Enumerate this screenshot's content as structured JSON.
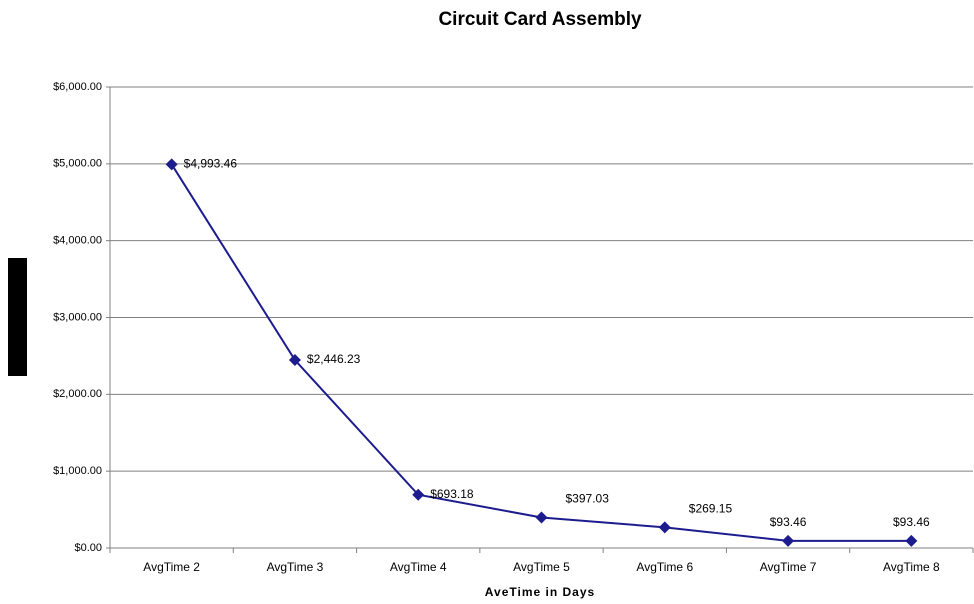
{
  "chart_data": {
    "type": "line",
    "title": "Circuit Card Assembly",
    "x_label": "AveTime in Days",
    "categories": [
      "AvgTime 2",
      "AvgTime 3",
      "AvgTime 4",
      "AvgTime 5",
      "AvgTime 6",
      "AvgTime 7",
      "AvgTime 8"
    ],
    "series": [
      {
        "name": "Cost",
        "color": "#1c1c8e",
        "values": [
          4993.46,
          2446.23,
          693.18,
          397.03,
          269.15,
          93.46,
          93.46
        ],
        "value_labels": [
          "$4,993.46",
          "$2,446.23",
          "$693.18",
          "$397.03",
          "$269.15",
          "$93.46",
          "$93.46"
        ]
      }
    ],
    "ylim": [
      0,
      6000
    ],
    "yticks": [
      {
        "value": 0,
        "label": "$0.00"
      },
      {
        "value": 1000,
        "label": "$1,000.00"
      },
      {
        "value": 2000,
        "label": "$2,000.00"
      },
      {
        "value": 3000,
        "label": "$3,000.00"
      },
      {
        "value": 4000,
        "label": "$4,000.00"
      },
      {
        "value": 5000,
        "label": "$5,000.00"
      },
      {
        "value": 6000,
        "label": "$6,000.00"
      }
    ],
    "grid": true
  }
}
